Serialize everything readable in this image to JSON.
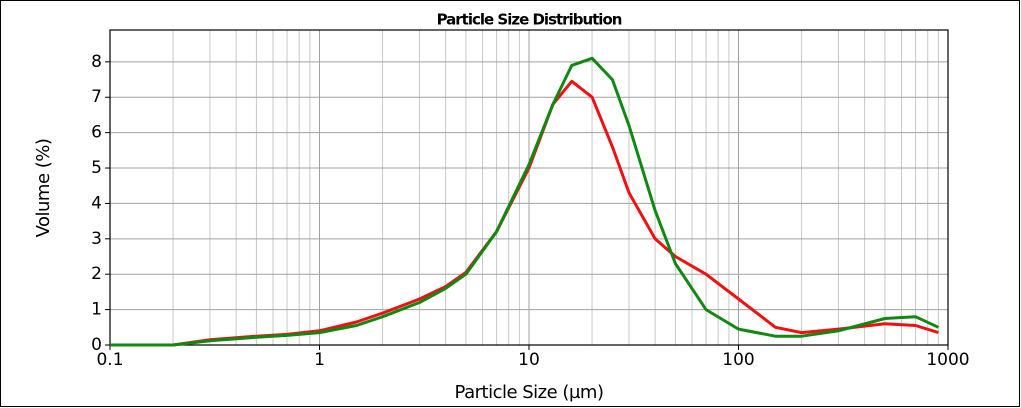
{
  "chart_data": {
    "type": "line",
    "title": "Particle Size Distribution",
    "xlabel": "Particle Size (µm)",
    "ylabel": "Volume (%)",
    "xscale": "log",
    "grid": true,
    "xlim": [
      0.1,
      1000
    ],
    "xticks": [
      0.1,
      1,
      10,
      100,
      1000
    ],
    "xminorticks": [
      0.2,
      0.3,
      0.4,
      0.5,
      0.6,
      0.7,
      0.8,
      0.9,
      2,
      3,
      4,
      5,
      6,
      7,
      8,
      9,
      20,
      30,
      40,
      50,
      60,
      70,
      80,
      90,
      200,
      300,
      400,
      500,
      600,
      700,
      800,
      900
    ],
    "ylim": [
      0,
      8.9
    ],
    "yticks": [
      0,
      1,
      2,
      3,
      4,
      5,
      6,
      7,
      8
    ],
    "x": [
      0.1,
      0.2,
      0.3,
      0.5,
      0.7,
      1,
      1.5,
      2,
      3,
      4,
      5,
      7,
      10,
      13,
      16,
      20,
      25,
      30,
      40,
      50,
      70,
      100,
      150,
      200,
      300,
      500,
      700,
      900
    ],
    "series": [
      {
        "color": "#ee1111",
        "values": [
          0,
          0,
          0.15,
          0.25,
          0.3,
          0.4,
          0.65,
          0.9,
          1.3,
          1.65,
          2.05,
          3.2,
          5.0,
          6.8,
          7.45,
          7.0,
          5.6,
          4.3,
          3.0,
          2.5,
          2.0,
          1.3,
          0.5,
          0.35,
          0.45,
          0.6,
          0.55,
          0.35
        ]
      },
      {
        "color": "#118811",
        "values": [
          0,
          0,
          0.12,
          0.22,
          0.27,
          0.35,
          0.55,
          0.8,
          1.2,
          1.6,
          2.0,
          3.2,
          5.1,
          6.8,
          7.9,
          8.1,
          7.5,
          6.2,
          3.8,
          2.3,
          1.0,
          0.45,
          0.25,
          0.25,
          0.4,
          0.75,
          0.8,
          0.5
        ]
      }
    ]
  }
}
